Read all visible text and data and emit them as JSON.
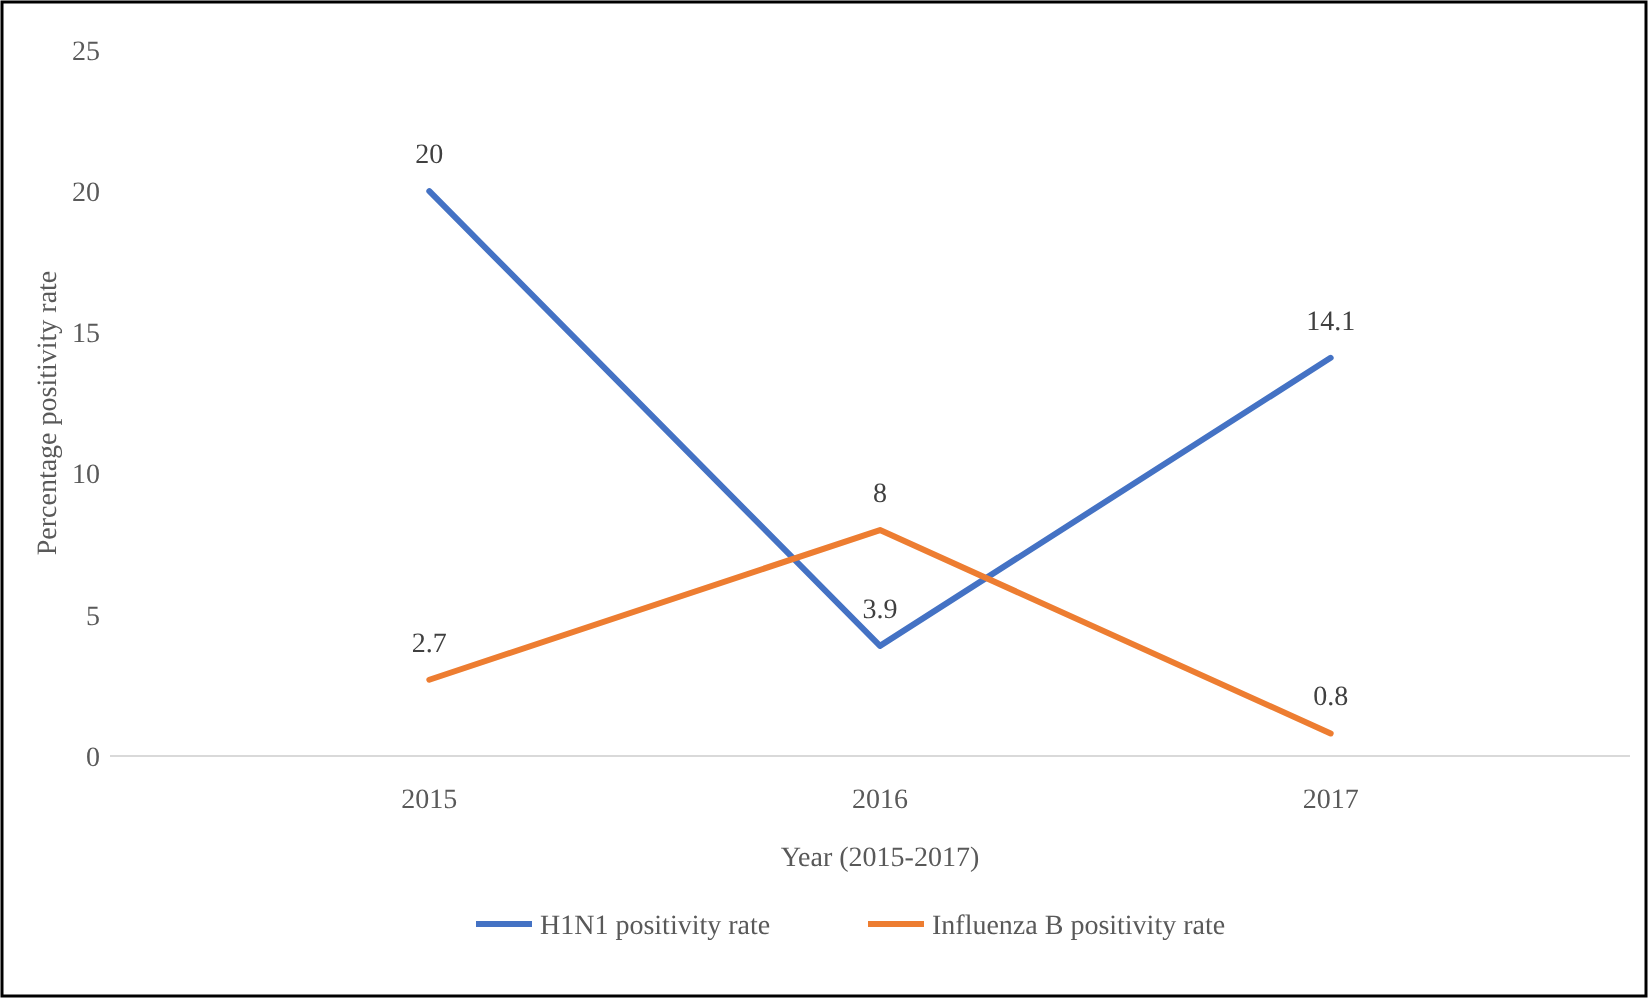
{
  "chart_data": {
    "type": "line",
    "xlabel": "Year (2015-2017)",
    "ylabel": "Percentage positivity rate",
    "categories": [
      "2015",
      "2016",
      "2017"
    ],
    "series": [
      {
        "name": "H1N1 positivity rate",
        "color": "#4472c4",
        "values": [
          20,
          3.9,
          14.1
        ]
      },
      {
        "name": "Influenza B positivity rate",
        "color": "#ed7d31",
        "values": [
          2.7,
          8,
          0.8
        ]
      }
    ],
    "ylim": [
      0,
      25
    ],
    "yticks": [
      0,
      5,
      10,
      15,
      20,
      25
    ],
    "grid": false,
    "legend": "bottom",
    "data_labels": true,
    "marker": "none",
    "line_style": "solid"
  }
}
